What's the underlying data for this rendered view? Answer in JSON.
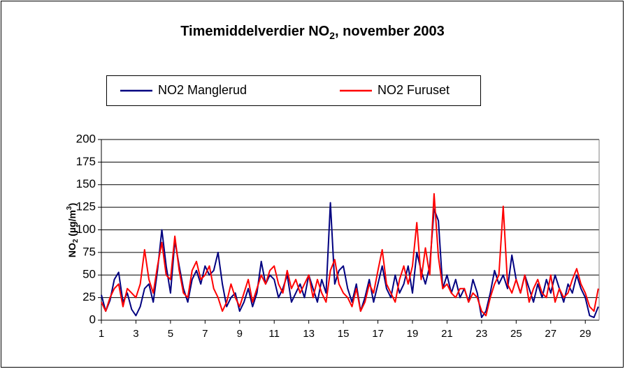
{
  "chart_data": {
    "type": "line",
    "title": [
      "Timemiddelverdier NO",
      "2",
      ", november 2003"
    ],
    "y_label": [
      "NO",
      "2",
      " (µg/m",
      "3",
      ")"
    ],
    "x": [
      1,
      1.25,
      1.5,
      1.75,
      2,
      2.25,
      2.5,
      2.75,
      3,
      3.25,
      3.5,
      3.75,
      4,
      4.25,
      4.5,
      4.75,
      5,
      5.25,
      5.5,
      5.75,
      6,
      6.25,
      6.5,
      6.75,
      7,
      7.25,
      7.5,
      7.75,
      8,
      8.25,
      8.5,
      8.75,
      9,
      9.25,
      9.5,
      9.75,
      10,
      10.25,
      10.5,
      10.75,
      11,
      11.25,
      11.5,
      11.75,
      12,
      12.25,
      12.5,
      12.75,
      13,
      13.25,
      13.5,
      13.75,
      14,
      14.25,
      14.5,
      14.75,
      15,
      15.25,
      15.5,
      15.75,
      16,
      16.25,
      16.5,
      16.75,
      17,
      17.25,
      17.5,
      17.75,
      18,
      18.25,
      18.5,
      18.75,
      19,
      19.25,
      19.5,
      19.75,
      20,
      20.25,
      20.5,
      20.75,
      21,
      21.25,
      21.5,
      21.75,
      22,
      22.25,
      22.5,
      22.75,
      23,
      23.25,
      23.5,
      23.75,
      24,
      24.25,
      24.5,
      24.75,
      25,
      25.25,
      25.5,
      25.75,
      26,
      26.25,
      26.5,
      26.75,
      27,
      27.25,
      27.5,
      27.75,
      28,
      28.25,
      28.5,
      28.75,
      29,
      29.25,
      29.5,
      29.75
    ],
    "series": [
      {
        "name": "NO2 Manglerud",
        "color": "#000080",
        "values": [
          28,
          10,
          22,
          45,
          53,
          20,
          30,
          12,
          5,
          15,
          35,
          40,
          20,
          55,
          100,
          60,
          30,
          88,
          60,
          35,
          20,
          45,
          55,
          40,
          60,
          50,
          55,
          75,
          40,
          15,
          25,
          30,
          10,
          20,
          35,
          15,
          30,
          65,
          40,
          50,
          45,
          25,
          35,
          50,
          20,
          30,
          40,
          25,
          50,
          35,
          20,
          45,
          30,
          130,
          40,
          55,
          60,
          35,
          20,
          40,
          10,
          25,
          45,
          20,
          40,
          60,
          35,
          25,
          50,
          30,
          40,
          60,
          30,
          75,
          55,
          40,
          60,
          123,
          110,
          35,
          50,
          30,
          45,
          25,
          35,
          20,
          45,
          30,
          3,
          10,
          30,
          55,
          40,
          50,
          35,
          72,
          45,
          30,
          50,
          35,
          20,
          40,
          25,
          45,
          30,
          50,
          35,
          20,
          40,
          30,
          50,
          35,
          25,
          5,
          3,
          15
        ]
      },
      {
        "name": "NO2 Furuset",
        "color": "#ff0000",
        "values": [
          20,
          10,
          25,
          35,
          40,
          15,
          35,
          30,
          25,
          40,
          78,
          45,
          30,
          60,
          86,
          50,
          45,
          93,
          55,
          30,
          25,
          55,
          65,
          45,
          50,
          60,
          35,
          25,
          10,
          20,
          40,
          25,
          15,
          30,
          45,
          20,
          35,
          50,
          40,
          55,
          60,
          40,
          30,
          55,
          35,
          45,
          30,
          40,
          50,
          25,
          45,
          30,
          20,
          55,
          67,
          40,
          30,
          25,
          15,
          35,
          10,
          20,
          40,
          30,
          55,
          78,
          40,
          30,
          20,
          45,
          60,
          40,
          60,
          108,
          45,
          80,
          50,
          140,
          70,
          35,
          40,
          30,
          25,
          35,
          35,
          20,
          30,
          25,
          10,
          5,
          25,
          40,
          50,
          126,
          40,
          30,
          45,
          30,
          50,
          20,
          35,
          45,
          30,
          25,
          50,
          20,
          35,
          25,
          30,
          45,
          57,
          40,
          30,
          15,
          10,
          35
        ]
      }
    ],
    "xlim": [
      1,
      29.8
    ],
    "xticks": [
      1,
      3,
      5,
      7,
      9,
      11,
      13,
      15,
      17,
      19,
      21,
      23,
      25,
      27,
      29
    ],
    "ylim": [
      0,
      200
    ],
    "yticks": [
      0,
      25,
      50,
      75,
      100,
      125,
      150,
      175,
      200
    ],
    "grid": true
  }
}
